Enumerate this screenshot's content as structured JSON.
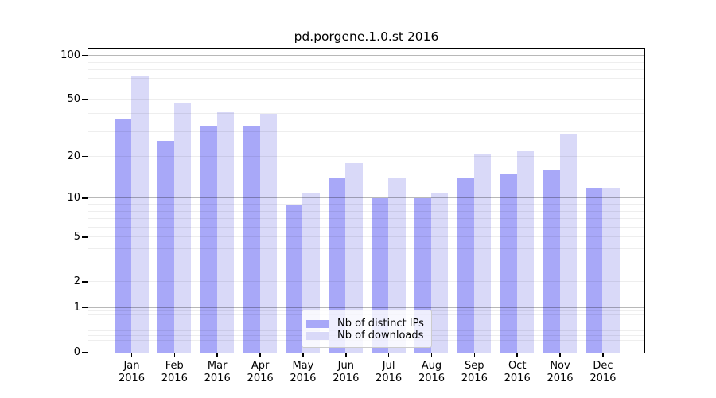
{
  "chart_data": {
    "type": "bar",
    "title": "pd.porgene.1.0.st 2016",
    "categories": [
      "Jan 2016",
      "Feb 2016",
      "Mar 2016",
      "Apr 2016",
      "May 2016",
      "Jun 2016",
      "Jul 2016",
      "Aug 2016",
      "Sep 2016",
      "Oct 2016",
      "Nov 2016",
      "Dec 2016"
    ],
    "x_tick_months": [
      "Jan",
      "Feb",
      "Mar",
      "Apr",
      "May",
      "Jun",
      "Jul",
      "Aug",
      "Sep",
      "Oct",
      "Nov",
      "Dec"
    ],
    "x_tick_year": "2016",
    "series": [
      {
        "name": "Nb of distinct IPs",
        "color": "#a8a8f8",
        "values": [
          37,
          26,
          33,
          33,
          9,
          14,
          10,
          10,
          14,
          15,
          16,
          12
        ]
      },
      {
        "name": "Nb of downloads",
        "color": "#d9d9f8",
        "values": [
          72,
          48,
          41,
          40,
          11,
          18,
          14,
          11,
          21,
          22,
          29,
          12
        ]
      }
    ],
    "xlabel": "",
    "ylabel": "",
    "y_scale": "log10(1+x)",
    "ylim": [
      0,
      114
    ],
    "y_tick_values": [
      100,
      50,
      20,
      10,
      5,
      2,
      1,
      0
    ],
    "y_tick_labels": [
      "100",
      "50",
      "20",
      "10",
      "5",
      "2",
      "1",
      "0"
    ],
    "grid": {
      "enabled": true,
      "major_values": [
        1,
        10,
        100
      ],
      "minor_values": [
        0.2,
        0.3,
        0.4,
        0.5,
        0.6,
        0.7,
        0.8,
        0.9,
        2,
        3,
        4,
        5,
        6,
        7,
        8,
        9,
        20,
        30,
        40,
        50,
        60,
        70,
        80,
        90
      ]
    },
    "legend": {
      "position": "lower center",
      "entries": [
        "Nb of distinct IPs",
        "Nb of downloads"
      ]
    },
    "colors": {
      "background": "#ffffff",
      "axis": "#000000",
      "grid_major": "#c6c6c6",
      "grid_minor": "#ececec",
      "bar_distinct_ips": "#a8a8f8",
      "bar_downloads": "#d9d9f8"
    }
  }
}
